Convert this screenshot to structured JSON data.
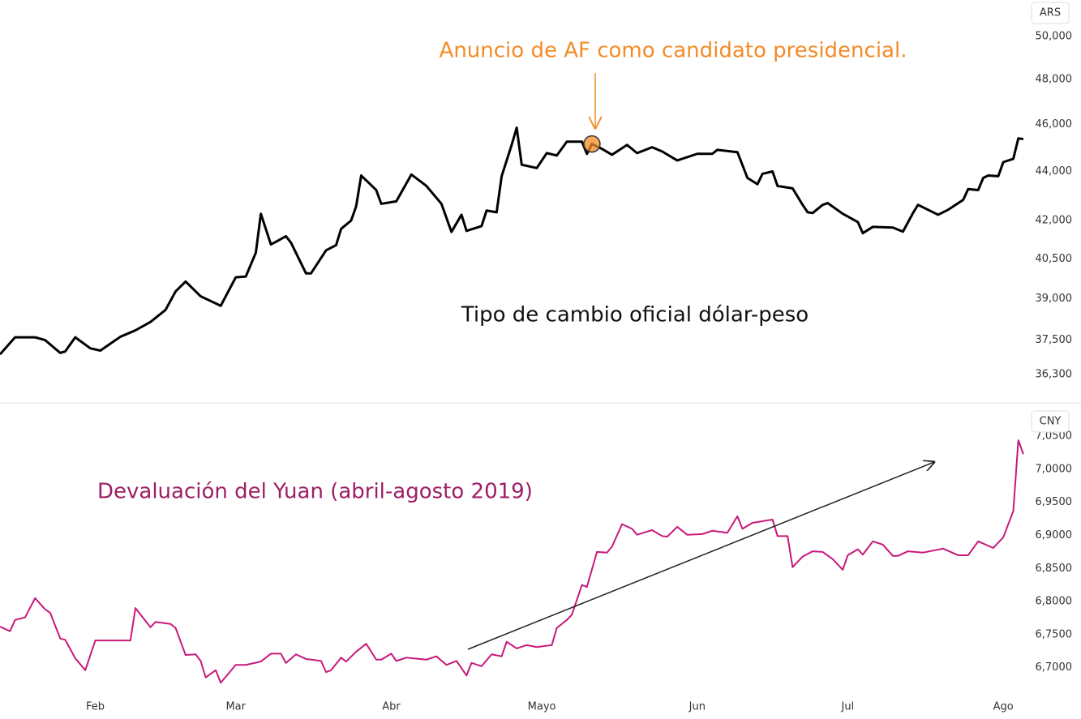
{
  "chart_data": [
    {
      "type": "line",
      "unit": "ARS",
      "yscale": "log",
      "grid": false,
      "xlim": [
        13,
        217.5
      ],
      "ylim": [
        35390,
        51760
      ],
      "yticks": [
        {
          "value": 50000,
          "label": "50,000"
        },
        {
          "value": 48000,
          "label": "48,000"
        },
        {
          "value": 46000,
          "label": "46,000"
        },
        {
          "value": 44000,
          "label": "44,000"
        },
        {
          "value": 42000,
          "label": "42,000"
        },
        {
          "value": 40500,
          "label": "40,500"
        },
        {
          "value": 39000,
          "label": "39,000"
        },
        {
          "value": 37500,
          "label": "37,500"
        },
        {
          "value": 36300,
          "label": "36,300"
        }
      ],
      "x": [
        13,
        16,
        20,
        22,
        25,
        26,
        28,
        31,
        33,
        37,
        40,
        43,
        46,
        48,
        50,
        53,
        57,
        60,
        62,
        64,
        65,
        67,
        68,
        70,
        71,
        74,
        75,
        78,
        80,
        81,
        83,
        84,
        85,
        88,
        89,
        92,
        95,
        98,
        101,
        103,
        105,
        106,
        109,
        110,
        112,
        113,
        115,
        116,
        117,
        120,
        122,
        124,
        126,
        129,
        130,
        131,
        133,
        135,
        138,
        140,
        143,
        145,
        148,
        152,
        155,
        156,
        160,
        162,
        164,
        165,
        167,
        168,
        171,
        173,
        174,
        175,
        177,
        178,
        181,
        184,
        185,
        187,
        191,
        193,
        195,
        196,
        200,
        202,
        205,
        206,
        208,
        209,
        210,
        212,
        213,
        215,
        216,
        217
      ],
      "series": [
        {
          "name": "Tipo de cambio oficial dólar-peso",
          "color": "#000000",
          "values": [
            37000,
            37600,
            37600,
            37500,
            37050,
            37100,
            37600,
            37210,
            37130,
            37620,
            37850,
            38150,
            38590,
            39270,
            39640,
            39090,
            38740,
            39800,
            39830,
            40740,
            42270,
            41060,
            41160,
            41380,
            41130,
            39950,
            39950,
            40830,
            41030,
            41670,
            42000,
            42570,
            43830,
            43230,
            42670,
            42770,
            43870,
            43400,
            42670,
            41550,
            42230,
            41590,
            41780,
            42400,
            42330,
            43800,
            45120,
            45860,
            44280,
            44140,
            44770,
            44670,
            45260,
            45260,
            44740,
            45160,
            44950,
            44700,
            45120,
            44770,
            45020,
            44840,
            44460,
            44740,
            44740,
            44910,
            44810,
            43730,
            43470,
            43900,
            44000,
            43400,
            43300,
            42630,
            42330,
            42300,
            42630,
            42700,
            42270,
            41940,
            41500,
            41750,
            41720,
            41560,
            42300,
            42630,
            42230,
            42430,
            42830,
            43270,
            43230,
            43730,
            43830,
            43800,
            44390,
            44530,
            45400,
            45370
          ]
        }
      ],
      "annotation": {
        "text": "Anuncio de AF como candidato presidencial.",
        "x": 131,
        "y": 45160,
        "color": "#f28c28"
      }
    },
    {
      "type": "line",
      "unit": "CNY",
      "grid": false,
      "xlim": [
        13,
        217.5
      ],
      "ylim": [
        6.6614,
        7.0601
      ],
      "yticks": [
        {
          "value": 7.05,
          "label": "7,0500"
        },
        {
          "value": 7,
          "label": "7,0000"
        },
        {
          "value": 6.95,
          "label": "6,9500"
        },
        {
          "value": 6.9,
          "label": "6,9000"
        },
        {
          "value": 6.85,
          "label": "6,8500"
        },
        {
          "value": 6.8,
          "label": "6,8000"
        },
        {
          "value": 6.75,
          "label": "6,7500"
        },
        {
          "value": 6.7,
          "label": "6,7000"
        }
      ],
      "xticks": [
        {
          "value": 32,
          "label": "Feb"
        },
        {
          "value": 60,
          "label": "Mar"
        },
        {
          "value": 91,
          "label": "Abr"
        },
        {
          "value": 121,
          "label": "Mayo"
        },
        {
          "value": 152,
          "label": "Jun"
        },
        {
          "value": 182,
          "label": "Jul"
        },
        {
          "value": 213,
          "label": "Ago"
        }
      ],
      "x": [
        13,
        15,
        16,
        18,
        20,
        22,
        23,
        25,
        26,
        28,
        30,
        32,
        34,
        39,
        40,
        43,
        44,
        47,
        48,
        50,
        52,
        53,
        54,
        56,
        57,
        60,
        62,
        65,
        67,
        69,
        70,
        72,
        74,
        77,
        78,
        79,
        81,
        82,
        84,
        86,
        88,
        89,
        91,
        92,
        94,
        98,
        100,
        102,
        104,
        106,
        107,
        109,
        111,
        113,
        114,
        116,
        118,
        120,
        123,
        124,
        126,
        127,
        129,
        130,
        132,
        134,
        135,
        137,
        139,
        140,
        143,
        145,
        146,
        148,
        150,
        153,
        155,
        158,
        160,
        161,
        163,
        167,
        168,
        170,
        171,
        173,
        175,
        177,
        179,
        181,
        182,
        184,
        185,
        187,
        189,
        191,
        192,
        194,
        197,
        201,
        204,
        206,
        208,
        211,
        213,
        215,
        216,
        217
      ],
      "series": [
        {
          "name": "Devaluación del Yuan (abril-agosto 2019)",
          "color": "#c8187a",
          "values": [
            6.762,
            6.755,
            6.772,
            6.776,
            6.805,
            6.788,
            6.783,
            6.744,
            6.742,
            6.714,
            6.696,
            6.741,
            6.741,
            6.741,
            6.79,
            6.761,
            6.769,
            6.766,
            6.76,
            6.719,
            6.72,
            6.71,
            6.685,
            6.696,
            6.677,
            6.704,
            6.704,
            6.709,
            6.721,
            6.721,
            6.707,
            6.72,
            6.713,
            6.71,
            6.693,
            6.696,
            6.715,
            6.709,
            6.724,
            6.736,
            6.712,
            6.712,
            6.721,
            6.71,
            6.715,
            6.712,
            6.717,
            6.704,
            6.71,
            6.688,
            6.707,
            6.702,
            6.72,
            6.717,
            6.739,
            6.729,
            6.734,
            6.731,
            6.734,
            6.76,
            6.772,
            6.78,
            6.825,
            6.822,
            6.875,
            6.874,
            6.883,
            6.917,
            6.91,
            6.901,
            6.908,
            6.899,
            6.898,
            6.913,
            6.901,
            6.902,
            6.907,
            6.904,
            6.929,
            6.91,
            6.919,
            6.924,
            6.899,
            6.899,
            6.852,
            6.868,
            6.876,
            6.875,
            6.864,
            6.848,
            6.87,
            6.879,
            6.871,
            6.891,
            6.886,
            6.869,
            6.869,
            6.876,
            6.874,
            6.88,
            6.87,
            6.87,
            6.891,
            6.881,
            6.897,
            6.937,
            7.044,
            7.023
          ]
        }
      ]
    }
  ]
}
